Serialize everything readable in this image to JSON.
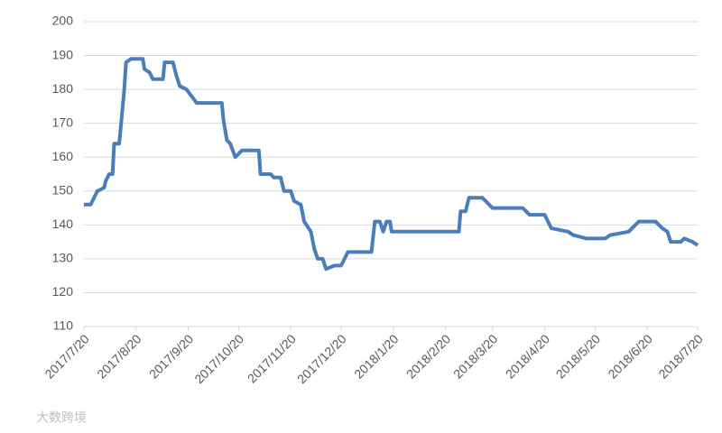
{
  "chart_data": {
    "type": "line",
    "x": [
      "2017/7/20",
      "2017/7/24",
      "2017/7/26",
      "2017/7/28",
      "2017/8/1",
      "2017/8/2",
      "2017/8/4",
      "2017/8/6",
      "2017/8/7",
      "2017/8/10",
      "2017/8/13",
      "2017/8/14",
      "2017/8/17",
      "2017/8/24",
      "2017/8/25",
      "2017/8/28",
      "2017/8/30",
      "2017/9/5",
      "2017/9/6",
      "2017/9/11",
      "2017/9/13",
      "2017/9/15",
      "2017/9/19",
      "2017/9/22",
      "2017/9/25",
      "2017/10/10",
      "2017/10/11",
      "2017/10/13",
      "2017/10/15",
      "2017/10/18",
      "2017/10/22",
      "2017/11/1",
      "2017/11/2",
      "2017/11/8",
      "2017/11/10",
      "2017/11/14",
      "2017/11/16",
      "2017/11/20",
      "2017/11/22",
      "2017/11/26",
      "2017/11/28",
      "2017/12/2",
      "2017/12/4",
      "2017/12/6",
      "2017/12/9",
      "2017/12/11",
      "2017/12/16",
      "2017/12/20",
      "2017/12/24",
      "2018/1/7",
      "2018/1/9",
      "2018/1/12",
      "2018/1/14",
      "2018/1/16",
      "2018/1/18",
      "2018/1/19",
      "2018/2/28",
      "2018/3/1",
      "2018/3/4",
      "2018/3/6",
      "2018/3/14",
      "2018/3/16",
      "2018/3/20",
      "2018/4/7",
      "2018/4/11",
      "2018/4/20",
      "2018/4/24",
      "2018/5/4",
      "2018/5/7",
      "2018/5/15",
      "2018/5/26",
      "2018/5/29",
      "2018/6/9",
      "2018/6/15",
      "2018/6/25",
      "2018/6/29",
      "2018/7/2",
      "2018/7/4",
      "2018/7/10",
      "2018/7/12",
      "2018/7/17",
      "2018/7/20"
    ],
    "series": [
      {
        "color": "#4a7ebb",
        "values": [
          146,
          146,
          148,
          150,
          151,
          153,
          155,
          155,
          164,
          164,
          180,
          188,
          189,
          189,
          186,
          185,
          183,
          183,
          188,
          188,
          184,
          181,
          180,
          178,
          176,
          176,
          171,
          165,
          164,
          160,
          162,
          162,
          155,
          155,
          154,
          154,
          150,
          150,
          147,
          146,
          141,
          138,
          133,
          130,
          130,
          127,
          128,
          128,
          132,
          132,
          141,
          141,
          138,
          141,
          141,
          138,
          138,
          144,
          144,
          148,
          148,
          147,
          145,
          145,
          143,
          143,
          139,
          138,
          137,
          136,
          136,
          137,
          138,
          141,
          141,
          139,
          138,
          135,
          135,
          136,
          135,
          134
        ]
      }
    ],
    "xlim": [
      "2017/7/20",
      "2018/7/20"
    ],
    "xticks": [
      "2017/7/20",
      "2017/8/20",
      "2017/9/20",
      "2017/10/20",
      "2017/11/20",
      "2017/12/20",
      "2018/1/20",
      "2018/2/20",
      "2018/3/20",
      "2018/4/20",
      "2018/5/20",
      "2018/6/20",
      "2018/7/20"
    ],
    "ylim": [
      110,
      200
    ],
    "yticks": [
      110,
      120,
      130,
      140,
      150,
      160,
      170,
      180,
      190,
      200
    ],
    "grid": true
  },
  "watermark": "大数跨境"
}
